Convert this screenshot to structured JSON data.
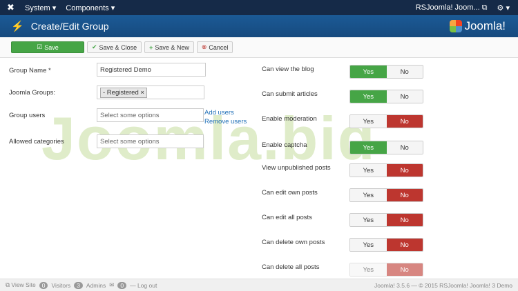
{
  "topbar": {
    "menus": [
      "System ▾",
      "Components ▾"
    ],
    "site_link": "RSJoomla! Joom... ⧉",
    "settings": "⚙ ▾"
  },
  "header": {
    "title": "Create/Edit Group",
    "brand": "Joomla!"
  },
  "toolbar": {
    "save": "Save",
    "save_close": "Save & Close",
    "save_new": "Save & New",
    "cancel": "Cancel"
  },
  "form": {
    "group_name": {
      "label": "Group Name *",
      "value": "Registered Demo"
    },
    "joomla_groups": {
      "label": "Joomla Groups:",
      "chip": "- Registered ×"
    },
    "group_users": {
      "label": "Group users",
      "placeholder": "Select some options",
      "add": "Add users",
      "remove": "Remove users"
    },
    "allowed_categories": {
      "label": "Allowed categories",
      "placeholder": "Select some options"
    }
  },
  "yes": "Yes",
  "no": "No",
  "permissions": [
    {
      "label": "Can view the blog",
      "value": "Yes"
    },
    {
      "label": "Can submit articles",
      "value": "Yes"
    },
    {
      "label": "Enable moderation",
      "value": "No"
    },
    {
      "label": "Enable captcha",
      "value": "Yes"
    },
    {
      "label": "View unpublished posts",
      "value": "No"
    },
    {
      "label": "Can edit own posts",
      "value": "No"
    },
    {
      "label": "Can edit all posts",
      "value": "No"
    },
    {
      "label": "Can delete own posts",
      "value": "No"
    },
    {
      "label": "Can delete all posts",
      "value": "No"
    }
  ],
  "watermark": "Joomla.bid",
  "footer": {
    "view_site": "⧉ View Site",
    "visitors_count": "0",
    "visitors": "Visitors",
    "admins_count": "3",
    "admins": "Admins",
    "mail_count": "0",
    "logout": "— Log out",
    "copyright": "Joomla! 3.5.6 — © 2015 RSJoomla! Joomla! 3 Demo"
  }
}
